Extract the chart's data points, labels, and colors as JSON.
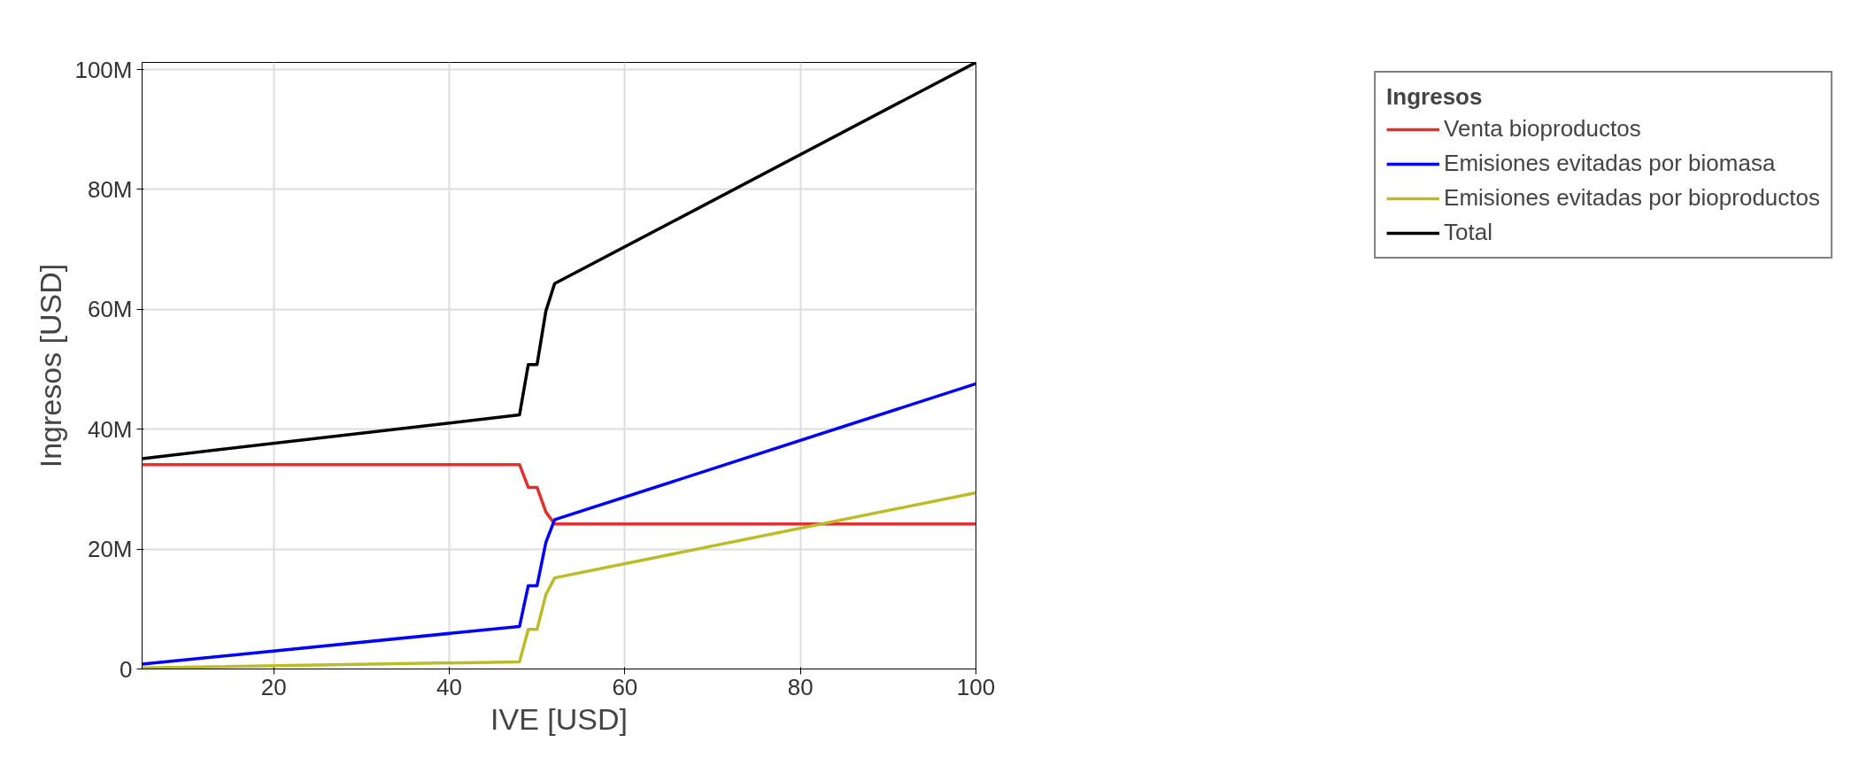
{
  "chart_data": {
    "type": "line",
    "xlabel": "IVE [USD]",
    "ylabel": "Ingresos [USD]",
    "legend_title": "Ingresos",
    "x": [
      5,
      48,
      49,
      50,
      51,
      52,
      100
    ],
    "series": [
      {
        "name": "Venta bioproductos",
        "color": "#e03030",
        "values": [
          34100000.0,
          34100000.0,
          30300000.0,
          30300000.0,
          26200000.0,
          24200000.0,
          24200000.0
        ]
      },
      {
        "name": "Emisiones evitadas por biomasa",
        "color": "#0000ff",
        "values": [
          800000.0,
          7100000.0,
          13900000.0,
          13900000.0,
          21100000.0,
          24900000.0,
          47600000.0
        ]
      },
      {
        "name": "Emisiones evitadas por bioproductos",
        "color": "#bcbc28",
        "values": [
          200000.0,
          1200000.0,
          6600000.0,
          6600000.0,
          12400000.0,
          15200000.0,
          29400000.0
        ]
      },
      {
        "name": "Total",
        "color": "#000000",
        "values": [
          35100000.0,
          42400000.0,
          50800000.0,
          50800000.0,
          59700000.0,
          64300000.0,
          101200000.0
        ]
      }
    ],
    "xlim": [
      5,
      100
    ],
    "xticks": [
      20,
      40,
      60,
      80,
      100
    ],
    "ylim": [
      0,
      101200000.0
    ],
    "yticks": [
      {
        "value": 0,
        "label": "0"
      },
      {
        "value": 20000000.0,
        "label": "20M"
      },
      {
        "value": 40000000.0,
        "label": "40M"
      },
      {
        "value": 60000000.0,
        "label": "60M"
      },
      {
        "value": 80000000.0,
        "label": "80M"
      },
      {
        "value": 100000000.0,
        "label": "100M"
      }
    ],
    "grid": true,
    "legend": "right"
  }
}
